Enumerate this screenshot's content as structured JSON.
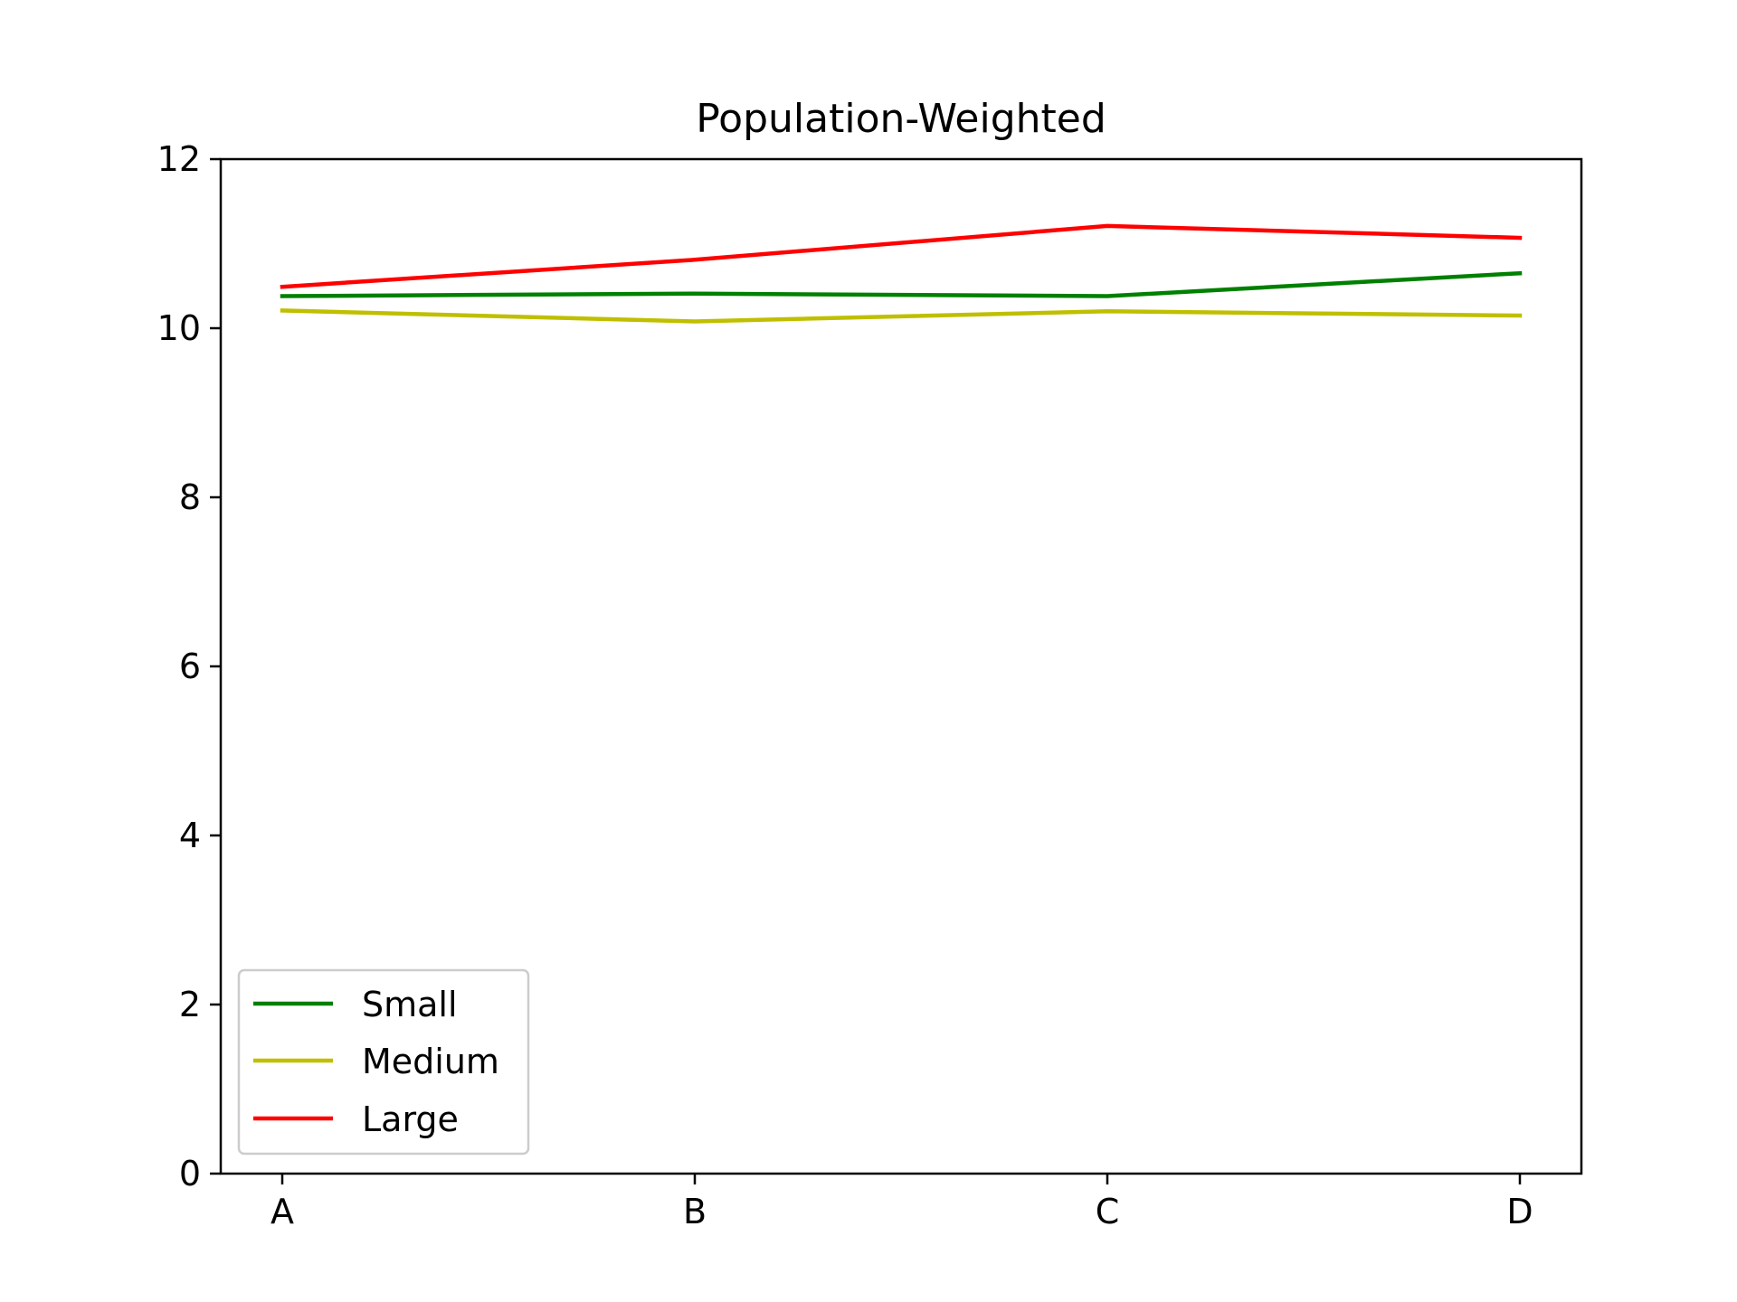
{
  "chart_data": {
    "type": "line",
    "title": "Population-Weighted",
    "xlabel": "",
    "ylabel": "",
    "categories": [
      "A",
      "B",
      "C",
      "D"
    ],
    "ylim": [
      0,
      12
    ],
    "yticks": [
      0,
      2,
      4,
      6,
      8,
      10,
      12
    ],
    "grid": false,
    "legend_position": "lower-left",
    "series": [
      {
        "name": "Small",
        "color": "#008000",
        "values": [
          10.38,
          10.41,
          10.38,
          10.65
        ]
      },
      {
        "name": "Medium",
        "color": "#bfbf00",
        "values": [
          10.21,
          10.08,
          10.2,
          10.15
        ]
      },
      {
        "name": "Large",
        "color": "#ff0000",
        "values": [
          10.49,
          10.81,
          11.21,
          11.07
        ]
      }
    ]
  }
}
